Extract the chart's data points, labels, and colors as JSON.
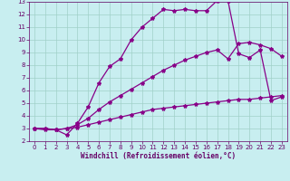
{
  "background_color": "#c8eef0",
  "grid_color": "#a0d0c8",
  "line_color": "#880088",
  "xlabel": "Windchill (Refroidissement éolien,°C)",
  "xlim": [
    -0.5,
    23.5
  ],
  "ylim": [
    2,
    13
  ],
  "xticks": [
    0,
    1,
    2,
    3,
    4,
    5,
    6,
    7,
    8,
    9,
    10,
    11,
    12,
    13,
    14,
    15,
    16,
    17,
    18,
    19,
    20,
    21,
    22,
    23
  ],
  "yticks": [
    2,
    3,
    4,
    5,
    6,
    7,
    8,
    9,
    10,
    11,
    12,
    13
  ],
  "line1_x": [
    0,
    1,
    2,
    3,
    4,
    5,
    6,
    7,
    8,
    9,
    10,
    11,
    12,
    13,
    14,
    15,
    16,
    17,
    18,
    19,
    20,
    21,
    22,
    23
  ],
  "line1_y": [
    3.0,
    3.0,
    2.9,
    3.0,
    3.1,
    3.3,
    3.5,
    3.7,
    3.9,
    4.1,
    4.3,
    4.5,
    4.6,
    4.7,
    4.8,
    4.9,
    5.0,
    5.1,
    5.2,
    5.3,
    5.3,
    5.4,
    5.5,
    5.6
  ],
  "line2_x": [
    0,
    1,
    2,
    3,
    4,
    5,
    6,
    7,
    8,
    9,
    10,
    11,
    12,
    13,
    14,
    15,
    16,
    17,
    18,
    19,
    20,
    21,
    22,
    23
  ],
  "line2_y": [
    3.0,
    3.0,
    2.9,
    3.0,
    3.3,
    3.8,
    4.5,
    5.1,
    5.6,
    6.1,
    6.6,
    7.1,
    7.6,
    8.0,
    8.4,
    8.7,
    9.0,
    9.2,
    8.5,
    9.7,
    9.8,
    9.6,
    9.3,
    8.7
  ],
  "line3_x": [
    0,
    1,
    2,
    3,
    4,
    5,
    6,
    7,
    8,
    9,
    10,
    11,
    12,
    13,
    14,
    15,
    16,
    17,
    18,
    19,
    20,
    21,
    22,
    23
  ],
  "line3_y": [
    3.0,
    2.9,
    2.9,
    2.5,
    3.4,
    4.7,
    6.6,
    7.9,
    8.5,
    10.0,
    11.0,
    11.7,
    12.4,
    12.3,
    12.4,
    12.3,
    12.3,
    13.1,
    13.1,
    8.9,
    8.6,
    9.2,
    5.2,
    5.5
  ],
  "marker": "*",
  "markersize": 3,
  "linewidth": 0.9,
  "xlabel_fontsize": 5.5,
  "tick_fontsize": 5,
  "label_color": "#660066",
  "spine_color": "#660066"
}
